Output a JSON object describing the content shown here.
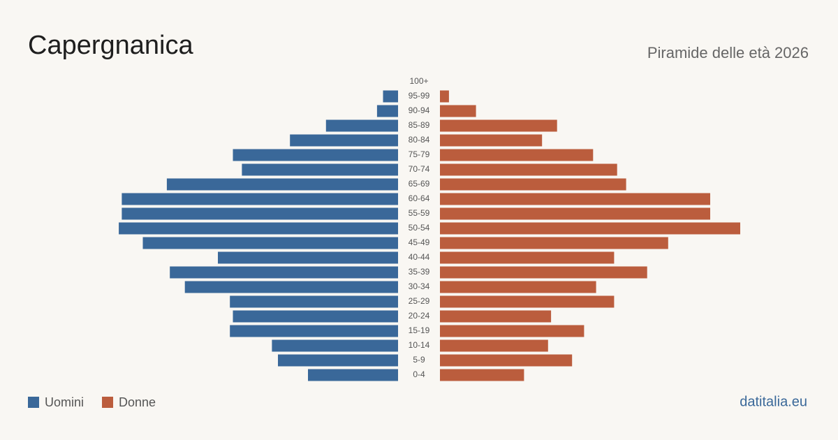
{
  "chart_data": {
    "type": "pyramid",
    "title": "Capergnanica",
    "subtitle": "Piramide delle età 2026",
    "source": "datitalia.eu",
    "categories": [
      "100+",
      "95-99",
      "90-94",
      "85-89",
      "80-84",
      "75-79",
      "70-74",
      "65-69",
      "60-64",
      "55-59",
      "50-54",
      "45-49",
      "40-44",
      "35-39",
      "30-34",
      "25-29",
      "20-24",
      "15-19",
      "10-14",
      "5-9",
      "0-4"
    ],
    "series": [
      {
        "name": "Uomini",
        "color": "#3a6899",
        "values": [
          0,
          5,
          7,
          24,
          36,
          55,
          52,
          77,
          92,
          92,
          93,
          85,
          60,
          76,
          71,
          56,
          55,
          56,
          42,
          40,
          30
        ]
      },
      {
        "name": "Donne",
        "color": "#bb5d3d",
        "values": [
          0,
          3,
          12,
          39,
          34,
          51,
          59,
          62,
          90,
          90,
          100,
          76,
          58,
          69,
          52,
          58,
          37,
          48,
          36,
          44,
          28
        ]
      }
    ]
  }
}
